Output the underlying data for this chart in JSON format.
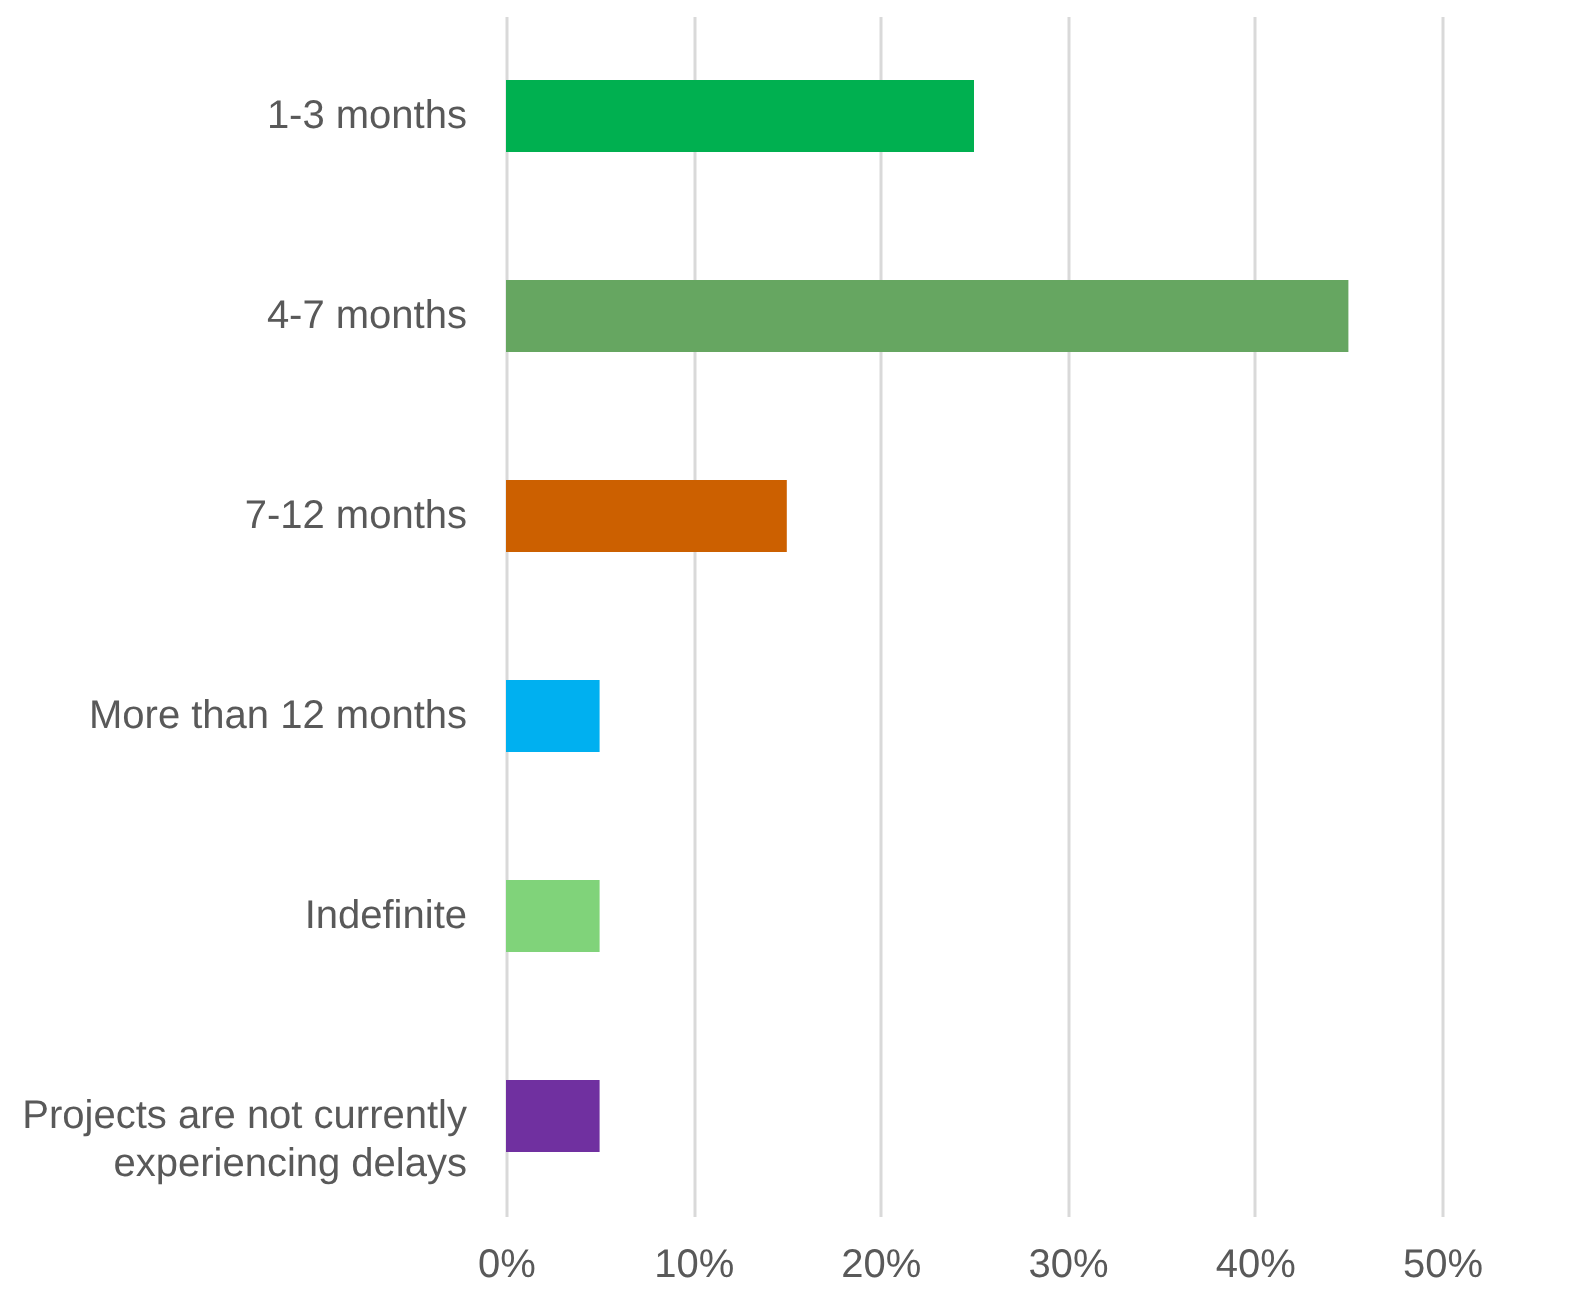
{
  "chart_data": {
    "type": "bar",
    "orientation": "horizontal",
    "categories": [
      "1-3 months",
      "4-7 months",
      "7-12 months",
      "More than 12 months",
      "Indefinite",
      "Projects are not currently experiencing delays"
    ],
    "values": [
      25,
      45,
      15,
      5,
      5,
      5
    ],
    "colors": [
      "#00b050",
      "#66a661",
      "#cc6000",
      "#00b0f0",
      "#80d37a",
      "#7030a0"
    ],
    "xlim": [
      0,
      50
    ],
    "xticks": [
      {
        "value": 0,
        "label": "0%"
      },
      {
        "value": 10,
        "label": "10%"
      },
      {
        "value": 20,
        "label": "20%"
      },
      {
        "value": 30,
        "label": "30%"
      },
      {
        "value": 40,
        "label": "40%"
      },
      {
        "value": 50,
        "label": "50%"
      }
    ],
    "grid": "x"
  }
}
